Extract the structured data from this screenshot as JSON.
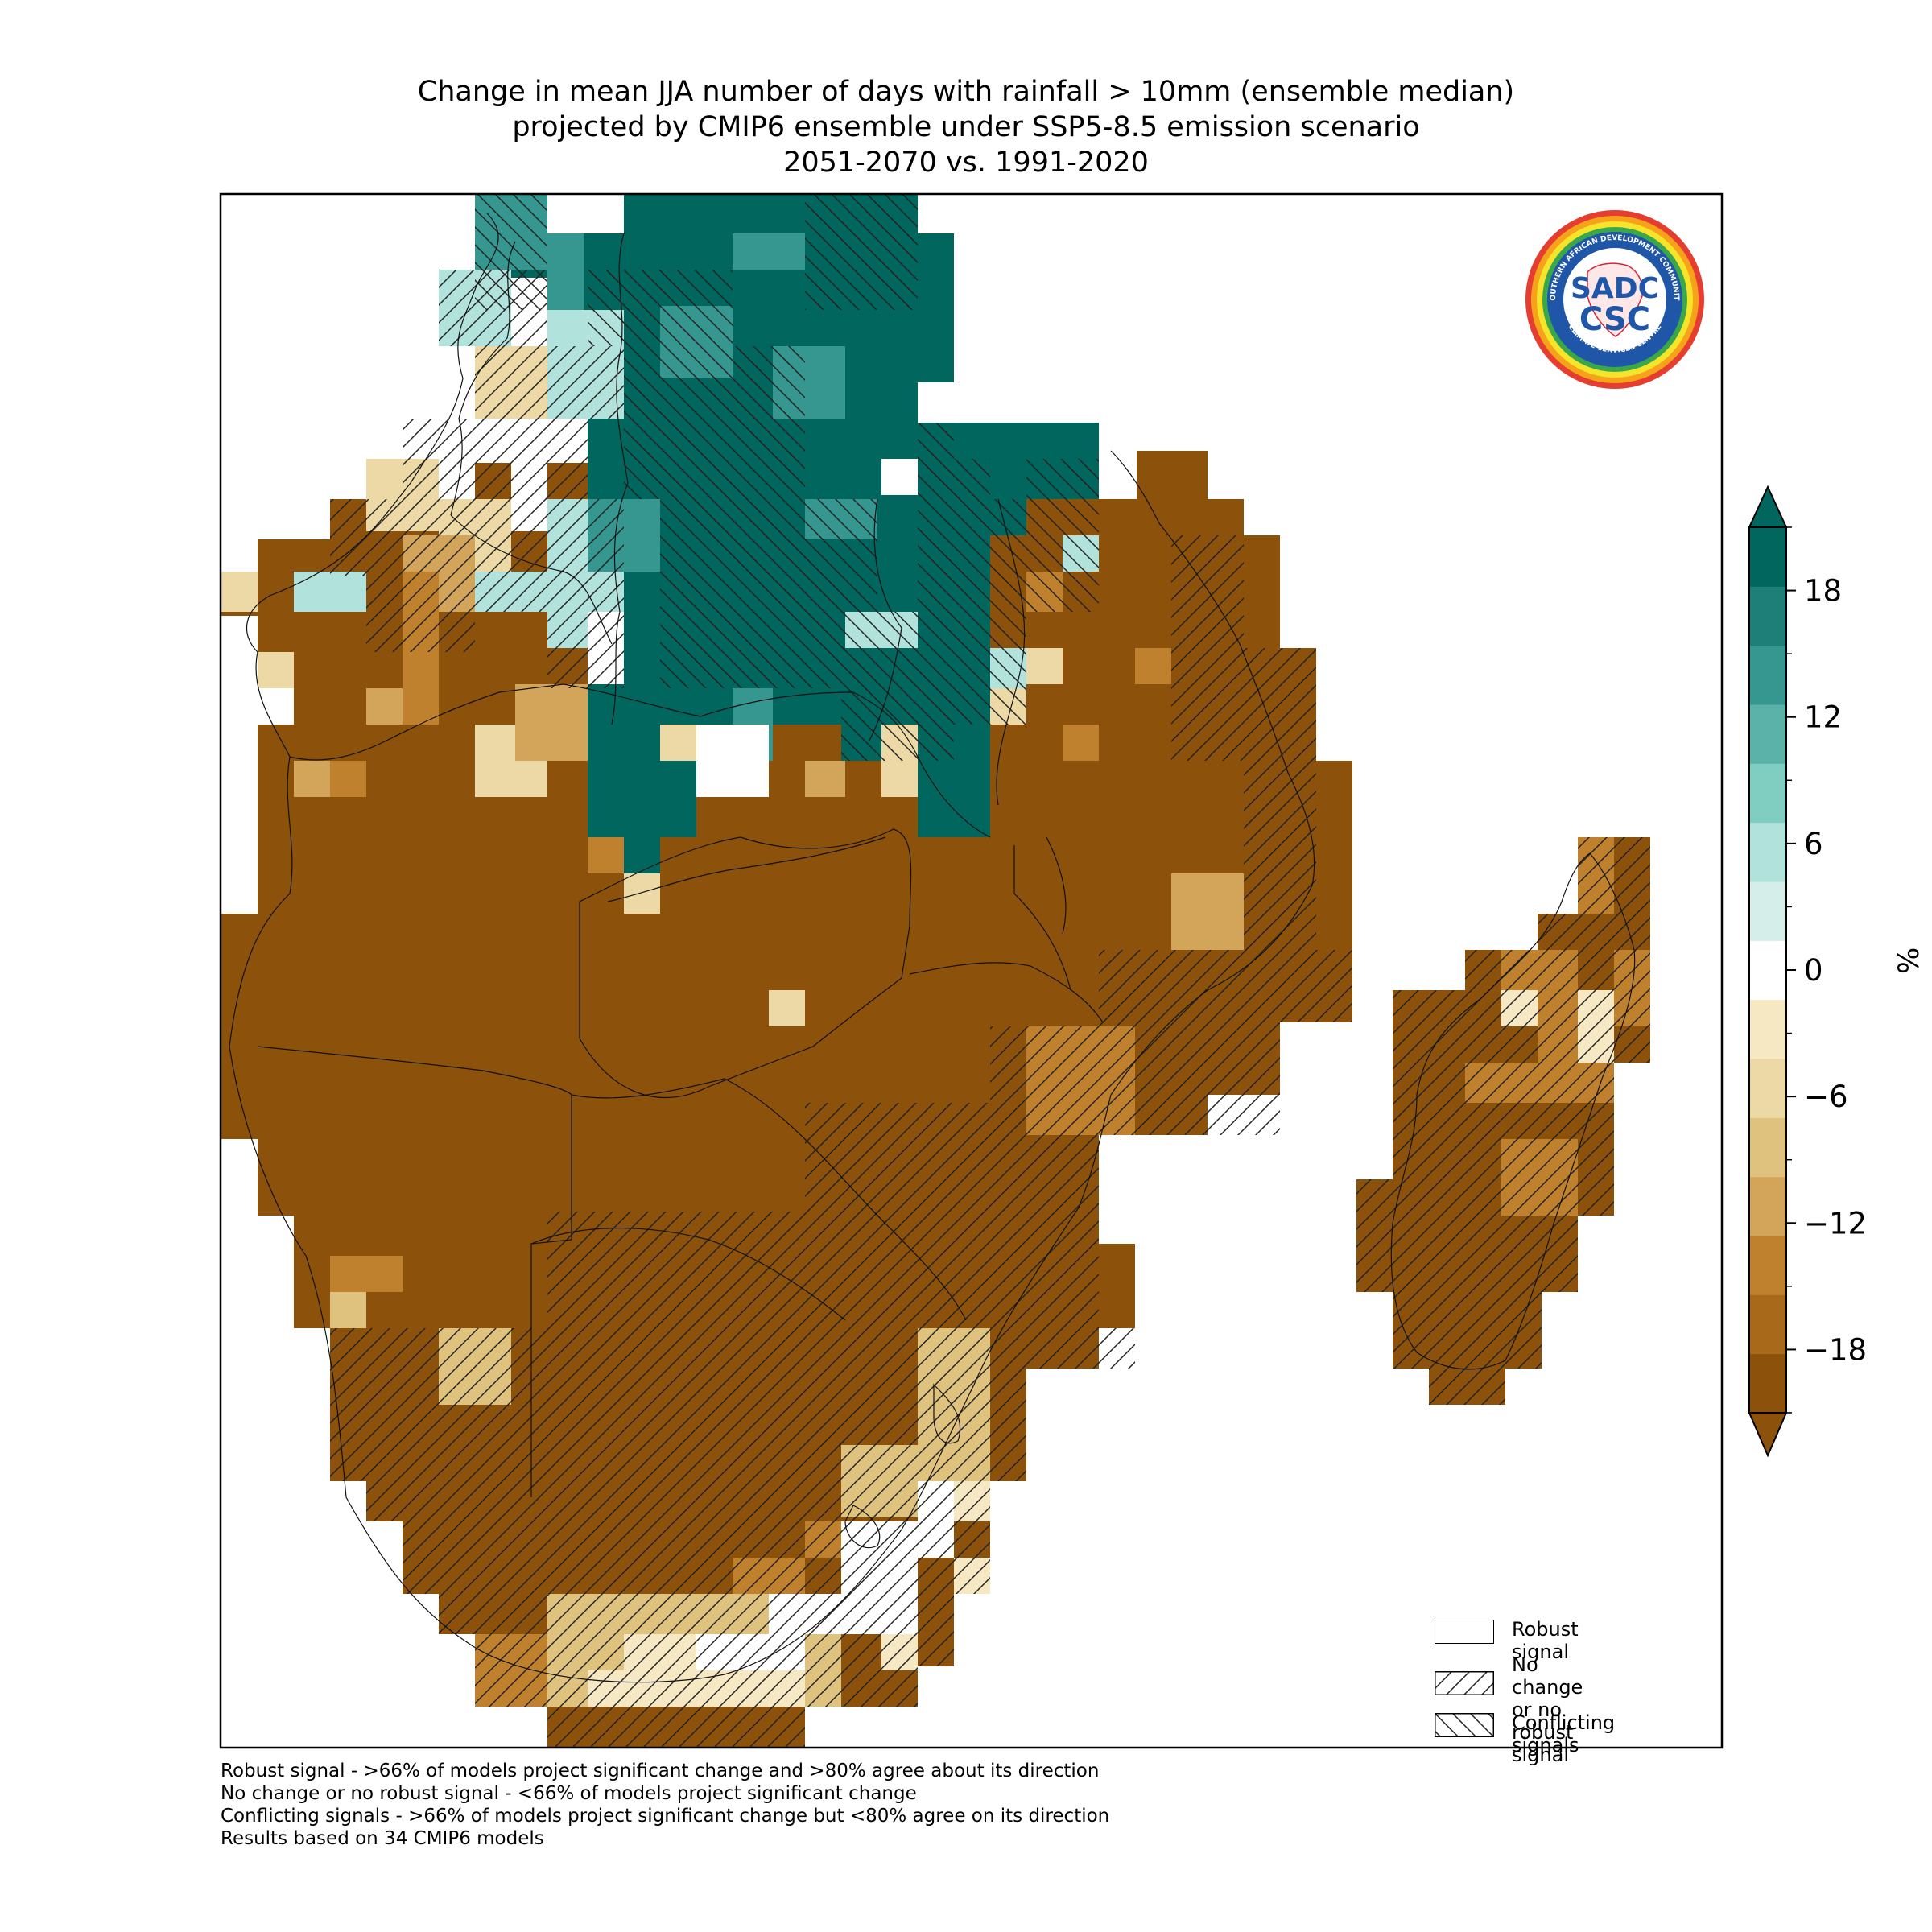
{
  "title_lines": [
    "Change in mean JJA number of days with rainfall > 10mm (ensemble median)",
    "projected by CMIP6 ensemble under SSP5-8.5 emission scenario",
    "2051-2070 vs. 1991-2020"
  ],
  "colors": {
    "scale": [
      "#8c510a",
      "#a8691a",
      "#bf812d",
      "#d3a55b",
      "#dfc27d",
      "#ecd9a6",
      "#f6e8c3",
      "#ffffff",
      "#d6eeea",
      "#b2e2dc",
      "#80cdc1",
      "#5ab2a8",
      "#35978f",
      "#1d7f77",
      "#01665e"
    ],
    "strong_negative": "#8c510a",
    "strong_positive": "#01665e"
  },
  "colorbar": {
    "unit": "%",
    "ticks": [
      18,
      12,
      6,
      0,
      -6,
      -12,
      -18
    ],
    "tick_labels": [
      "18",
      "12",
      "6",
      "0",
      "−6",
      "−12",
      "−18"
    ],
    "extend": "both"
  },
  "logo": {
    "text_main": "CSC",
    "text_top": "SOUTHERN AFRICAN DEVELOPMENT COMMUNITY",
    "text_bottom": "CLIMATE SERVICES CENTRE",
    "text_sadc": "SADC"
  },
  "legend": [
    {
      "label": "Robust signal",
      "hatch": "none"
    },
    {
      "label": "No change\nor no robust signal",
      "hatch": "forward"
    },
    {
      "label": "Conflicting signals",
      "hatch": "back"
    }
  ],
  "footnotes": [
    "Robust signal - >66% of models project significant change and >80% agree about its direction",
    "No change or no robust signal - <66% of models project significant change",
    "Conflicting signals - >66% of models project significant change but <80% agree on its direction",
    "Results based on 34 CMIP6 models"
  ]
}
